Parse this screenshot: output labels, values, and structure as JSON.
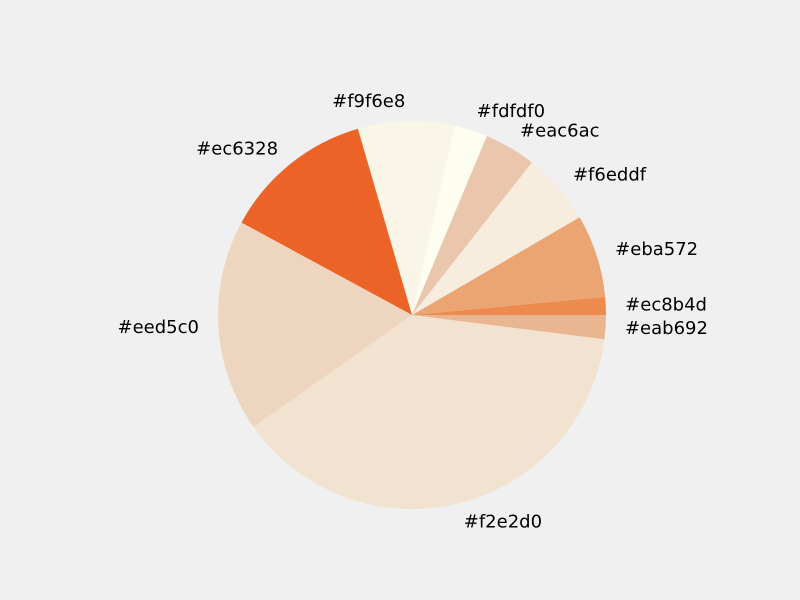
{
  "chart_data": {
    "type": "pie",
    "title": "",
    "start_angle_deg": 0,
    "direction": "counterclockwise",
    "slices": [
      {
        "label": "#ec8b4d",
        "value": 1.5,
        "color": "#ec8b4d"
      },
      {
        "label": "#eba572",
        "value": 6.9,
        "color": "#eba572"
      },
      {
        "label": "#f6eddf",
        "value": 6.0,
        "color": "#f6eddf"
      },
      {
        "label": "#eac6ac",
        "value": 4.3,
        "color": "#eac6ac"
      },
      {
        "label": "#fdfdf0",
        "value": 2.8,
        "color": "#fdfdf0"
      },
      {
        "label": "#f9f6e8",
        "value": 8.0,
        "color": "#f9f6e8"
      },
      {
        "label": "#ec6328",
        "value": 12.6,
        "color": "#ec6328"
      },
      {
        "label": "#eed5c0",
        "value": 17.7,
        "color": "#eed5c0"
      },
      {
        "label": "#f2e2d0",
        "value": 38.2,
        "color": "#f2e2d0"
      },
      {
        "label": "#eab692",
        "value": 2.0,
        "color": "#eab692"
      }
    ]
  }
}
